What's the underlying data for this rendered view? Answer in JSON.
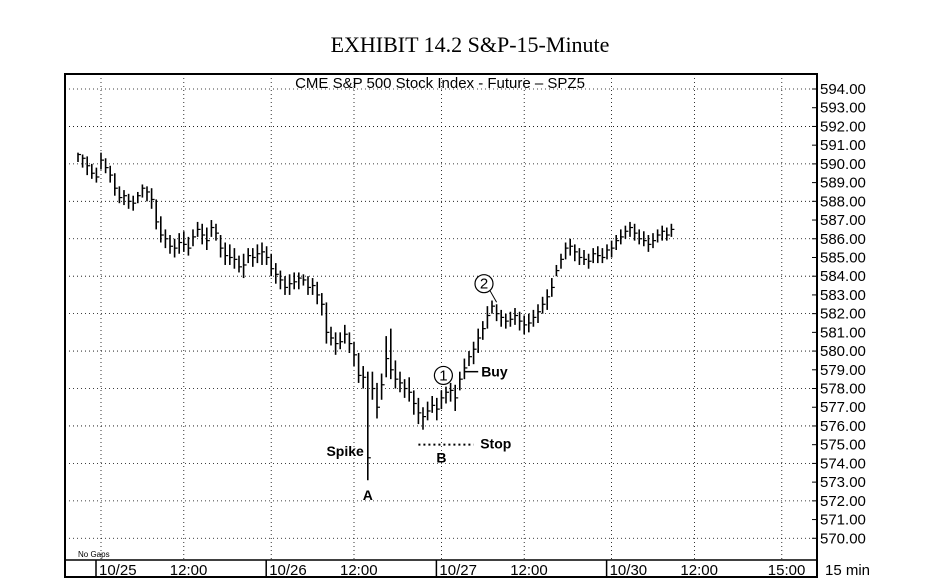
{
  "exhibit_title": "EXHIBIT 14.2 S&P-15-Minute",
  "chart_data": {
    "type": "bar",
    "title": "CME  S&P  500  Stock  Index  -  Future  –  SPZ5",
    "interval_label": "15  min",
    "no_gaps_label": "No Gaps",
    "ylim": [
      569,
      594.5
    ],
    "y_ticks": [
      594,
      593,
      592,
      591,
      590,
      589,
      588,
      587,
      586,
      585,
      584,
      583,
      582,
      581,
      580,
      579,
      578,
      577,
      576,
      575,
      574,
      573,
      572,
      571,
      570
    ],
    "y_tick_labels": [
      "594.00",
      "593.00",
      "592.00",
      "591.00",
      "590.00",
      "589.00",
      "588.00",
      "587.00",
      "586.00",
      "585.00",
      "584.00",
      "583.00",
      "582.00",
      "581.00",
      "580.00",
      "579.00",
      "578.00",
      "577.00",
      "576.00",
      "575.00",
      "574.00",
      "573.00",
      "572.00",
      "571.00",
      "570.00"
    ],
    "x_labels": [
      {
        "text": "10/25",
        "bar": 5
      },
      {
        "text": "12:00",
        "bar": 23
      },
      {
        "text": "10/26",
        "bar": 42
      },
      {
        "text": "12:00",
        "bar": 60
      },
      {
        "text": "10/27",
        "bar": 79
      },
      {
        "text": "12:00",
        "bar": 97
      },
      {
        "text": "10/30",
        "bar": 116
      },
      {
        "text": "12:00",
        "bar": 134
      },
      {
        "text": "15:00",
        "bar": 153
      }
    ],
    "ohlc": [
      [
        590.6,
        590.1,
        590.5
      ],
      [
        590.5,
        589.8,
        590.3
      ],
      [
        590.4,
        589.4,
        589.9
      ],
      [
        590.0,
        589.2,
        589.5
      ],
      [
        589.8,
        589.0,
        589.3
      ],
      [
        590.6,
        589.7,
        590.2
      ],
      [
        590.3,
        589.5,
        589.8
      ],
      [
        589.9,
        589.0,
        589.4
      ],
      [
        589.5,
        588.3,
        588.7
      ],
      [
        588.8,
        587.9,
        588.2
      ],
      [
        588.6,
        587.8,
        588.3
      ],
      [
        588.4,
        587.6,
        588.0
      ],
      [
        588.3,
        587.5,
        587.9
      ],
      [
        588.5,
        587.9,
        588.3
      ],
      [
        588.9,
        588.2,
        588.7
      ],
      [
        588.8,
        588.0,
        588.5
      ],
      [
        588.7,
        587.6,
        588.1
      ],
      [
        588.1,
        586.5,
        586.9
      ],
      [
        587.2,
        585.8,
        586.2
      ],
      [
        586.5,
        585.5,
        586.0
      ],
      [
        586.2,
        585.2,
        585.6
      ],
      [
        586.0,
        585.0,
        585.5
      ],
      [
        586.3,
        585.2,
        585.8
      ],
      [
        586.4,
        585.3,
        585.7
      ],
      [
        586.1,
        585.1,
        585.5
      ],
      [
        586.5,
        585.6,
        586.1
      ],
      [
        586.9,
        586.1,
        586.5
      ],
      [
        586.8,
        585.7,
        586.2
      ],
      [
        586.6,
        585.4,
        585.9
      ],
      [
        587.0,
        586.1,
        586.6
      ],
      [
        586.8,
        585.9,
        586.3
      ],
      [
        586.2,
        585.0,
        585.5
      ],
      [
        585.8,
        584.6,
        585.1
      ],
      [
        585.7,
        584.6,
        585.0
      ],
      [
        585.5,
        584.4,
        584.9
      ],
      [
        585.1,
        584.2,
        584.5
      ],
      [
        585.2,
        583.9,
        584.6
      ],
      [
        585.5,
        584.7,
        585.1
      ],
      [
        585.5,
        584.5,
        585.0
      ],
      [
        585.7,
        584.7,
        585.2
      ],
      [
        585.8,
        584.6,
        585.3
      ],
      [
        585.6,
        584.6,
        585.0
      ],
      [
        585.2,
        584.0,
        584.4
      ],
      [
        584.7,
        583.6,
        584.1
      ],
      [
        584.3,
        583.3,
        583.8
      ],
      [
        584.0,
        583.0,
        583.4
      ],
      [
        584.1,
        583.0,
        583.6
      ],
      [
        584.2,
        583.3,
        583.7
      ],
      [
        584.2,
        583.3,
        583.9
      ],
      [
        584.1,
        583.5,
        583.8
      ],
      [
        584.0,
        583.0,
        583.4
      ],
      [
        583.9,
        583.0,
        583.5
      ],
      [
        583.7,
        582.5,
        583.0
      ],
      [
        583.1,
        581.9,
        582.5
      ],
      [
        582.6,
        580.4,
        581.0
      ],
      [
        581.3,
        580.3,
        580.7
      ],
      [
        581.0,
        579.8,
        580.4
      ],
      [
        581.0,
        580.1,
        580.5
      ],
      [
        581.4,
        580.4,
        580.9
      ],
      [
        581.0,
        579.9,
        580.4
      ],
      [
        580.5,
        579.2,
        579.8
      ],
      [
        579.9,
        578.3,
        578.7
      ],
      [
        579.2,
        578.0,
        578.6
      ],
      [
        578.9,
        573.1,
        574.3
      ],
      [
        578.9,
        577.4,
        578.0
      ],
      [
        578.3,
        576.4,
        577.0
      ],
      [
        578.8,
        577.4,
        578.2
      ],
      [
        580.8,
        578.6,
        579.6
      ],
      [
        581.2,
        578.5,
        579.0
      ],
      [
        579.5,
        578.0,
        578.5
      ],
      [
        578.9,
        577.8,
        578.3
      ],
      [
        578.5,
        577.5,
        578.0
      ],
      [
        578.6,
        577.3,
        577.8
      ],
      [
        577.9,
        576.6,
        577.2
      ],
      [
        577.5,
        576.1,
        576.7
      ],
      [
        577.0,
        575.8,
        576.5
      ],
      [
        577.3,
        576.3,
        576.8
      ],
      [
        577.6,
        576.7,
        577.1
      ],
      [
        577.5,
        576.3,
        576.9
      ],
      [
        577.9,
        576.9,
        577.5
      ],
      [
        578.1,
        577.2,
        577.8
      ],
      [
        578.3,
        577.3,
        577.9
      ],
      [
        578.2,
        576.8,
        577.5
      ],
      [
        578.9,
        577.9,
        578.5
      ],
      [
        579.6,
        578.5,
        579.1
      ],
      [
        580.0,
        579.2,
        579.7
      ],
      [
        580.5,
        579.3,
        580.1
      ],
      [
        581.2,
        579.9,
        580.7
      ],
      [
        581.6,
        580.6,
        581.2
      ],
      [
        582.4,
        581.2,
        581.9
      ],
      [
        582.7,
        582.0,
        582.4
      ],
      [
        582.5,
        581.6,
        582.0
      ],
      [
        582.2,
        581.3,
        581.8
      ],
      [
        582.0,
        581.2,
        581.6
      ],
      [
        582.1,
        581.3,
        581.7
      ],
      [
        582.3,
        581.4,
        581.9
      ],
      [
        582.1,
        581.1,
        581.6
      ],
      [
        581.9,
        580.9,
        581.4
      ],
      [
        582.0,
        581.0,
        581.5
      ],
      [
        582.2,
        581.3,
        581.8
      ],
      [
        582.5,
        581.5,
        582.1
      ],
      [
        582.9,
        582.0,
        582.5
      ],
      [
        583.3,
        582.2,
        582.9
      ],
      [
        583.9,
        582.9,
        583.4
      ],
      [
        584.6,
        584.0,
        584.3
      ],
      [
        585.2,
        584.4,
        584.9
      ],
      [
        585.8,
        584.9,
        585.5
      ],
      [
        586.0,
        585.1,
        585.6
      ],
      [
        585.7,
        584.8,
        585.3
      ],
      [
        585.5,
        584.6,
        585.0
      ],
      [
        585.4,
        584.6,
        584.9
      ],
      [
        585.2,
        584.4,
        584.8
      ],
      [
        585.5,
        584.7,
        585.2
      ],
      [
        585.6,
        584.7,
        585.1
      ],
      [
        585.5,
        584.7,
        585.0
      ],
      [
        585.7,
        584.9,
        585.4
      ],
      [
        585.9,
        585.0,
        585.5
      ],
      [
        586.2,
        585.4,
        585.9
      ],
      [
        586.5,
        585.7,
        586.1
      ],
      [
        586.7,
        586.0,
        586.4
      ],
      [
        586.9,
        586.1,
        586.6
      ],
      [
        586.8,
        585.9,
        586.3
      ],
      [
        586.5,
        585.7,
        586.0
      ],
      [
        586.4,
        585.6,
        585.9
      ],
      [
        586.2,
        585.3,
        585.7
      ],
      [
        586.3,
        585.5,
        585.9
      ],
      [
        586.5,
        585.8,
        586.2
      ],
      [
        586.7,
        585.9,
        586.4
      ],
      [
        586.6,
        585.9,
        586.2
      ],
      [
        586.8,
        586.1,
        586.5
      ]
    ],
    "annotations": [
      {
        "text": "Spike",
        "kind": "label"
      },
      {
        "text": "A",
        "kind": "label"
      },
      {
        "text": "B",
        "kind": "label"
      },
      {
        "text": "Stop",
        "kind": "label",
        "price": 575.0
      },
      {
        "text": "Buy",
        "kind": "label"
      },
      {
        "text": "1",
        "kind": "circle"
      },
      {
        "text": "2",
        "kind": "circle"
      }
    ]
  }
}
